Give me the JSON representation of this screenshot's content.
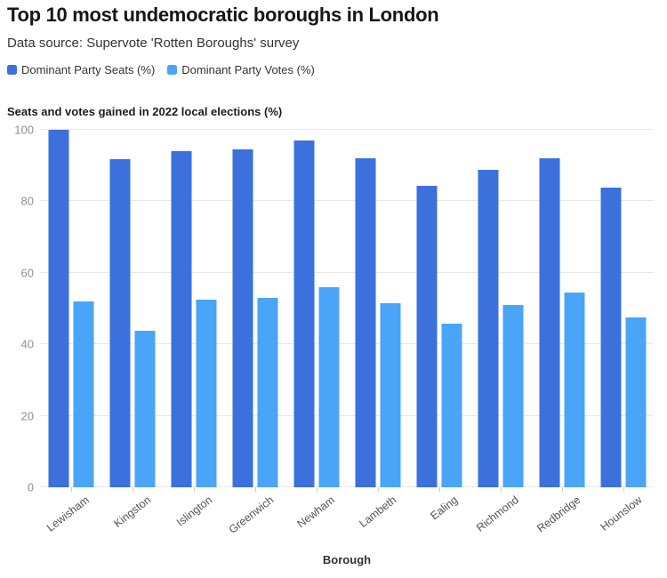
{
  "header": {
    "title": "Top 10 most undemocratic boroughs in London",
    "subtitle": "Data source: Supervote 'Rotten Boroughs' survey"
  },
  "legend": {
    "items": [
      {
        "label": "Dominant Party Seats (%)",
        "color": "#3b70dd"
      },
      {
        "label": "Dominant Party Votes (%)",
        "color": "#4aa4f8"
      }
    ]
  },
  "chart_data": {
    "type": "bar",
    "title": "Seats and votes gained in 2022 local elections (%)",
    "xlabel": "Borough",
    "ylabel": "",
    "ylim": [
      0,
      100
    ],
    "yticks": [
      0,
      20,
      40,
      60,
      80,
      100
    ],
    "grid": true,
    "legend_position": "top-left",
    "categories": [
      "Lewisham",
      "Kingston",
      "Islington",
      "Greenwich",
      "Newham",
      "Lambeth",
      "Ealing",
      "Richmond",
      "Redbridge",
      "Hounslow"
    ],
    "series": [
      {
        "name": "Dominant Party Seats (%)",
        "color": "#3b70dd",
        "values": [
          100,
          91.8,
          94.1,
          94.5,
          97,
          92.1,
          84.3,
          88.9,
          92.1,
          83.9
        ]
      },
      {
        "name": "Dominant Party Votes (%)",
        "color": "#4aa4f8",
        "values": [
          52,
          43.8,
          52.4,
          53,
          55.9,
          51.4,
          45.8,
          50.9,
          54.4,
          47.6
        ]
      }
    ]
  }
}
